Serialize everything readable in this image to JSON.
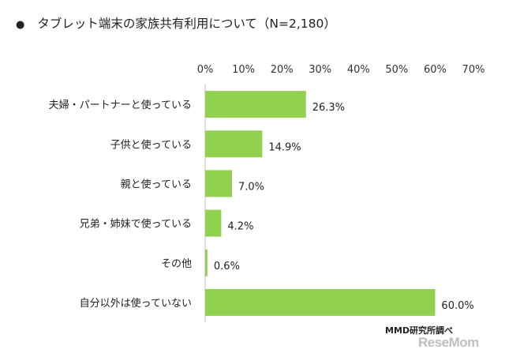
{
  "title_bullet": "●",
  "chart_data": {
    "type": "bar",
    "orientation": "horizontal",
    "title": "タブレット端末の家族共有利用について（N=2,180）",
    "categories": [
      "夫婦・パートナーと使っている",
      "子供と使っている",
      "親と使っている",
      "兄弟・姉妹で使っている",
      "その他",
      "自分以外は使っていない"
    ],
    "values": [
      26.3,
      14.9,
      7.0,
      4.2,
      0.6,
      60.0
    ],
    "value_labels": [
      "26.3%",
      "14.9%",
      "7.0%",
      "4.2%",
      "0.6%",
      "60.0%"
    ],
    "xlim": [
      0,
      70
    ],
    "xticks": [
      0,
      10,
      20,
      30,
      40,
      50,
      60,
      70
    ],
    "xtick_labels": [
      "0%",
      "10%",
      "20%",
      "30%",
      "40%",
      "50%",
      "60%",
      "70%"
    ],
    "axis_position": "top",
    "grid": false,
    "legend": "none",
    "bar_color": "#92d050"
  },
  "source": "MMD研究所調べ",
  "watermark": "ReseMom"
}
